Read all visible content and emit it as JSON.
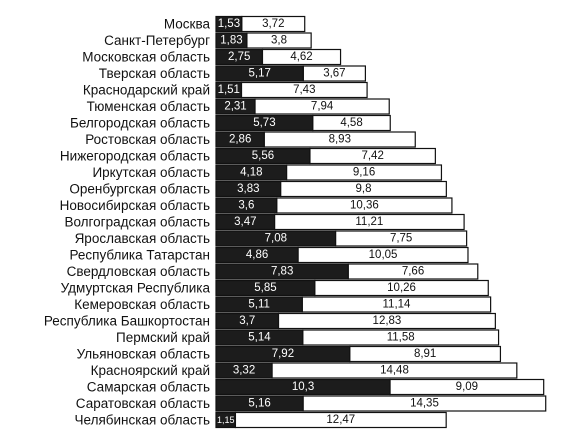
{
  "chart_data": {
    "type": "stacked-bar-horizontal",
    "categories": [
      "Москва",
      "Санкт-Петербург",
      "Московская область",
      "Тверская область",
      "Краснодарский край",
      "Тюменская область",
      "Белгородская область",
      "Ростовская область",
      "Нижегородская область",
      "Иркутская область",
      "Оренбургская область",
      "Новосибирская область",
      "Волгоградская область",
      "Ярославская область",
      "Республика Татарстан",
      "Свердловская область",
      "Удмуртская Республика",
      "Кемеровская область",
      "Республика Башкортостан",
      "Пермский край",
      "Ульяновская область",
      "Красноярский край",
      "Самарская область",
      "Саратовская область",
      "Челябинская область"
    ],
    "series": [
      {
        "color": "#1c1c1c",
        "values": [
          1.53,
          1.83,
          2.75,
          5.17,
          1.51,
          2.31,
          5.73,
          2.86,
          5.56,
          4.18,
          3.83,
          3.6,
          3.47,
          7.08,
          4.86,
          7.83,
          5.85,
          5.11,
          3.7,
          5.14,
          7.92,
          3.32,
          10.3,
          5.16,
          1.15
        ],
        "value_labels": [
          "1,53",
          "1,83",
          "2,75",
          "5,17",
          "1,51",
          "2,31",
          "5,73",
          "2,86",
          "5,56",
          "4,18",
          "3,83",
          "3,6",
          "3,47",
          "7,08",
          "4,86",
          "7,83",
          "5,85",
          "5,11",
          "3,7",
          "5,14",
          "7,92",
          "3,32",
          "10,3",
          "5,16",
          "1,15"
        ]
      },
      {
        "color": "#ffffff",
        "values": [
          3.72,
          3.8,
          4.62,
          3.67,
          7.43,
          7.94,
          4.58,
          8.93,
          7.42,
          9.16,
          9.8,
          10.36,
          11.21,
          7.75,
          10.05,
          7.66,
          10.26,
          11.14,
          12.83,
          11.58,
          8.91,
          14.48,
          9.09,
          14.35,
          12.47
        ],
        "value_labels": [
          "3,72",
          "3,8",
          "4,62",
          "3,67",
          "7,43",
          "7,94",
          "4,58",
          "8,93",
          "7,42",
          "9,16",
          "9,8",
          "10,36",
          "11,21",
          "7,75",
          "10,05",
          "7,66",
          "10,26",
          "11,14",
          "12,83",
          "11,58",
          "8,91",
          "14,48",
          "9,09",
          "14,35",
          "12,47"
        ]
      }
    ]
  }
}
